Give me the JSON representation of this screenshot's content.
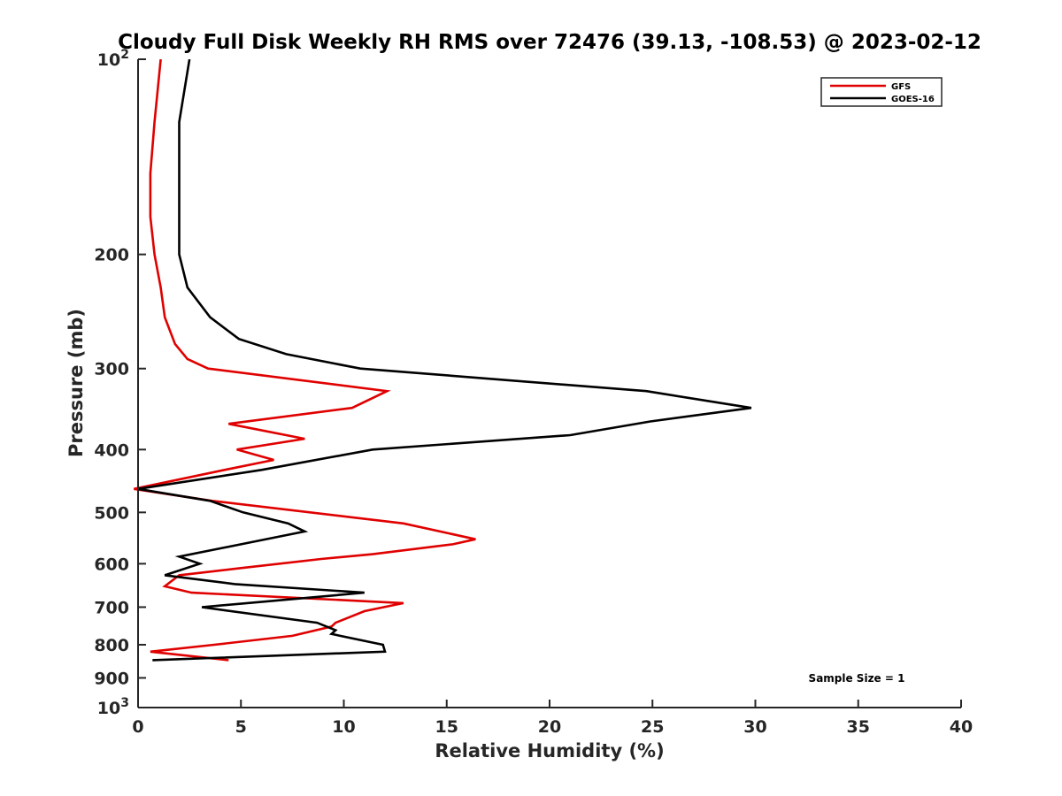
{
  "chart_data": {
    "type": "line",
    "title": "Cloudy Full Disk Weekly RH RMS over 72476 (39.13, -108.53) @ 2023-02-12",
    "xlabel": "Relative Humidity (%)",
    "ylabel": "Pressure (mb)",
    "xlim": [
      0,
      40
    ],
    "ylim": [
      100,
      1000
    ],
    "y_scale": "log",
    "y_reversed": true,
    "grid": false,
    "legend_position": "top-right",
    "x_ticks": [
      "0",
      "5",
      "10",
      "15",
      "20",
      "25",
      "30",
      "35",
      "40"
    ],
    "x_tick_values": [
      0,
      5,
      10,
      15,
      20,
      25,
      30,
      35,
      40
    ],
    "y_ticks": [
      {
        "value": 100,
        "base": "10",
        "exp": "2"
      },
      {
        "value": 200,
        "label": "200"
      },
      {
        "value": 300,
        "label": "300"
      },
      {
        "value": 400,
        "label": "400"
      },
      {
        "value": 500,
        "label": "500"
      },
      {
        "value": 600,
        "label": "600"
      },
      {
        "value": 700,
        "label": "700"
      },
      {
        "value": 800,
        "label": "800"
      },
      {
        "value": 900,
        "label": "900"
      },
      {
        "value": 1000,
        "base": "10",
        "exp": "3"
      }
    ],
    "annotation": "Sample Size = 1",
    "series": [
      {
        "name": "GFS",
        "color": "#e00000",
        "points": [
          [
            1.1,
            100
          ],
          [
            0.8,
            125
          ],
          [
            0.6,
            150
          ],
          [
            0.6,
            175
          ],
          [
            0.8,
            200
          ],
          [
            1.1,
            225
          ],
          [
            1.3,
            250
          ],
          [
            1.8,
            275
          ],
          [
            2.4,
            290
          ],
          [
            3.4,
            300
          ],
          [
            12.1,
            325
          ],
          [
            10.4,
            345
          ],
          [
            4.4,
            365
          ],
          [
            8.1,
            385
          ],
          [
            4.8,
            400
          ],
          [
            6.6,
            415
          ],
          [
            4.2,
            430
          ],
          [
            -0.2,
            460
          ],
          [
            3.6,
            480
          ],
          [
            12.9,
            520
          ],
          [
            16.4,
            550
          ],
          [
            15.3,
            560
          ],
          [
            11.4,
            580
          ],
          [
            8.9,
            590
          ],
          [
            4.9,
            610
          ],
          [
            2.0,
            625
          ],
          [
            1.3,
            650
          ],
          [
            2.6,
            665
          ],
          [
            12.9,
            690
          ],
          [
            11.0,
            710
          ],
          [
            9.6,
            740
          ],
          [
            9.4,
            750
          ],
          [
            7.5,
            775
          ],
          [
            3.7,
            800
          ],
          [
            0.6,
            820
          ],
          [
            4.4,
            845
          ]
        ]
      },
      {
        "name": "GOES-16",
        "color": "#000000",
        "points": [
          [
            2.5,
            100
          ],
          [
            2.0,
            125
          ],
          [
            2.0,
            150
          ],
          [
            2.0,
            175
          ],
          [
            2.0,
            200
          ],
          [
            2.4,
            225
          ],
          [
            3.5,
            250
          ],
          [
            4.9,
            270
          ],
          [
            7.2,
            285
          ],
          [
            10.8,
            300
          ],
          [
            24.7,
            325
          ],
          [
            29.8,
            345
          ],
          [
            24.9,
            362
          ],
          [
            21.0,
            380
          ],
          [
            11.4,
            400
          ],
          [
            6.0,
            430
          ],
          [
            0.0,
            460
          ],
          [
            3.5,
            480
          ],
          [
            5.1,
            500
          ],
          [
            7.3,
            520
          ],
          [
            8.1,
            535
          ],
          [
            5.0,
            560
          ],
          [
            2.0,
            585
          ],
          [
            3.0,
            600
          ],
          [
            1.3,
            625
          ],
          [
            4.7,
            645
          ],
          [
            11.0,
            665
          ],
          [
            3.1,
            700
          ],
          [
            8.7,
            740
          ],
          [
            9.6,
            760
          ],
          [
            9.4,
            770
          ],
          [
            11.9,
            800
          ],
          [
            12.0,
            820
          ],
          [
            0.7,
            845
          ]
        ]
      }
    ]
  }
}
